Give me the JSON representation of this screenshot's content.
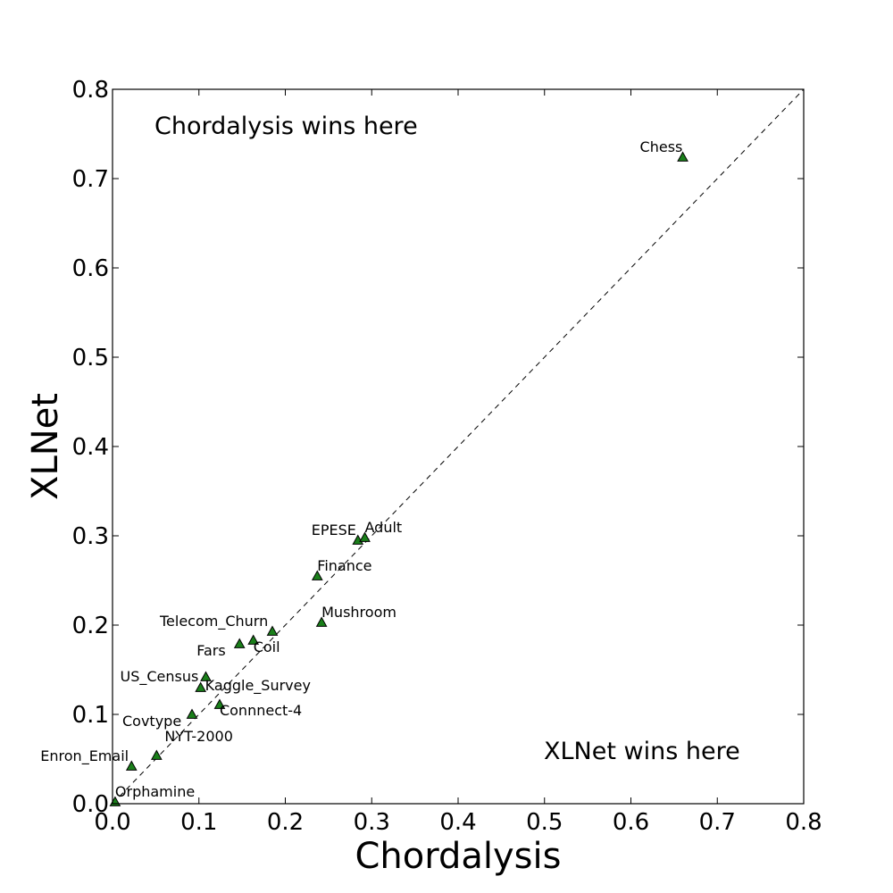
{
  "chart_data": {
    "type": "scatter",
    "xlabel": "Chordalysis",
    "ylabel": "XLNet",
    "xlim": [
      0.0,
      0.8
    ],
    "ylim": [
      0.0,
      0.8
    ],
    "xticks": [
      "0.0",
      "0.1",
      "0.2",
      "0.3",
      "0.4",
      "0.5",
      "0.6",
      "0.7",
      "0.8"
    ],
    "yticks": [
      "0.0",
      "0.1",
      "0.2",
      "0.3",
      "0.4",
      "0.5",
      "0.6",
      "0.7",
      "0.8"
    ],
    "grid": false,
    "diagonal_line": {
      "from": [
        0.0,
        0.0
      ],
      "to": [
        0.8,
        0.8
      ],
      "style": "dashed"
    },
    "marker": "triangle",
    "marker_color": "#1a7f1a",
    "annotations": [
      "Chordalysis wins here",
      "XLNet wins here"
    ],
    "points": [
      {
        "label": "Chess",
        "x": 0.66,
        "y": 0.724
      },
      {
        "label": "EPESE",
        "x": 0.284,
        "y": 0.295
      },
      {
        "label": "Adult",
        "x": 0.292,
        "y": 0.298
      },
      {
        "label": "Finance",
        "x": 0.237,
        "y": 0.255
      },
      {
        "label": "Mushroom",
        "x": 0.242,
        "y": 0.203
      },
      {
        "label": "Telecom_Churn",
        "x": 0.185,
        "y": 0.193
      },
      {
        "label": "Coil",
        "x": 0.163,
        "y": 0.183
      },
      {
        "label": "Fars",
        "x": 0.147,
        "y": 0.179
      },
      {
        "label": "US_Census",
        "x": 0.108,
        "y": 0.142
      },
      {
        "label": "Kaggle_Survey",
        "x": 0.102,
        "y": 0.13
      },
      {
        "label": "Connnect-4",
        "x": 0.124,
        "y": 0.111
      },
      {
        "label": "Covtype",
        "x": 0.092,
        "y": 0.1
      },
      {
        "label": "NYT-2000",
        "x": 0.051,
        "y": 0.054
      },
      {
        "label": "Enron_Email",
        "x": 0.022,
        "y": 0.042
      },
      {
        "label": "Orphamine",
        "x": 0.003,
        "y": 0.002
      }
    ]
  }
}
